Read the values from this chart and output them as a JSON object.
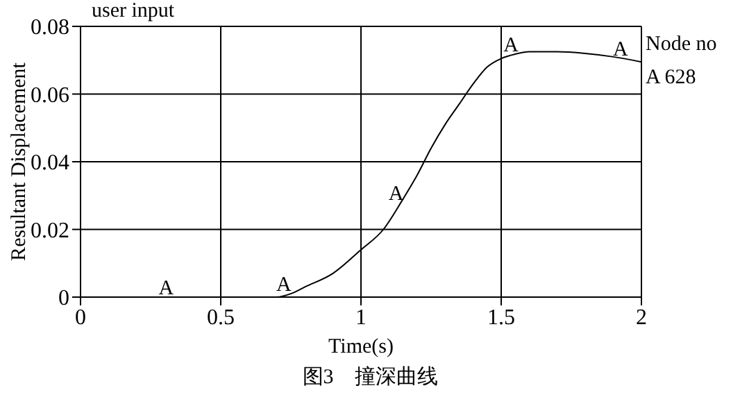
{
  "chart_data": {
    "type": "line",
    "title": "user input",
    "xlabel": "Time(s)",
    "ylabel": "Resultant Displacement",
    "legend_title": "Node no",
    "legend": "top right",
    "grid": true,
    "line_style": "solid",
    "x": [
      0,
      0.1,
      0.2,
      0.3,
      0.4,
      0.5,
      0.6,
      0.7,
      0.75,
      0.8,
      0.9,
      1.0,
      1.08,
      1.15,
      1.2,
      1.25,
      1.3,
      1.35,
      1.4,
      1.45,
      1.5,
      1.55,
      1.6,
      1.7,
      1.8,
      1.9,
      2.0
    ],
    "series": [
      {
        "name": "A 628",
        "color": "#000000",
        "values": [
          0,
          0,
          0,
          0,
          0,
          0,
          0,
          0,
          0.001,
          0.003,
          0.007,
          0.014,
          0.02,
          0.029,
          0.036,
          0.044,
          0.051,
          0.057,
          0.063,
          0.068,
          0.0705,
          0.0718,
          0.0725,
          0.0725,
          0.072,
          0.071,
          0.0695
        ]
      }
    ],
    "xlim": [
      0,
      2
    ],
    "xticks": [
      0,
      0.5,
      1,
      1.5,
      2
    ],
    "ylim": [
      0,
      0.08
    ],
    "yticks": [
      0,
      0.02,
      0.04,
      0.06,
      0.08
    ],
    "annotations": [
      {
        "text": "A",
        "x": 0.32,
        "y": 0
      },
      {
        "text": "A",
        "x": 0.74,
        "y": 0.001
      },
      {
        "text": "A",
        "x": 1.14,
        "y": 0.028
      },
      {
        "text": "A",
        "x": 1.55,
        "y": 0.0718
      },
      {
        "text": "A",
        "x": 1.94,
        "y": 0.0705
      },
      "图3　撞深曲线"
    ]
  }
}
